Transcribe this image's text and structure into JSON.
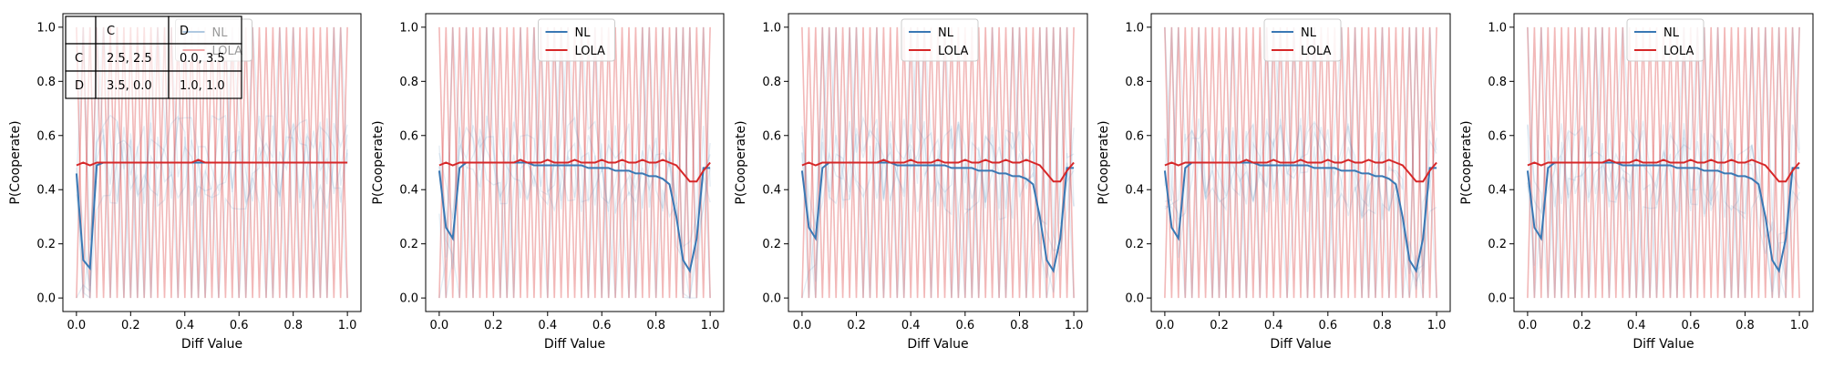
{
  "chart_data": [
    {
      "type": "line",
      "xlabel": "Diff Value",
      "ylabel": "P(Cooperate)",
      "xlim": [
        0.0,
        1.0
      ],
      "ylim": [
        0.0,
        1.0
      ],
      "xticks": [
        "0.0",
        "0.2",
        "0.4",
        "0.6",
        "0.8",
        "1.0"
      ],
      "yticks": [
        "0.0",
        "0.2",
        "0.4",
        "0.6",
        "0.8",
        "1.0"
      ],
      "legend": {
        "placement": "top-center",
        "entries": [
          "NL",
          "LOLA"
        ]
      },
      "colors": {
        "NL": "#3a78b4",
        "LOLA": "#d62728"
      },
      "x": [
        0.0,
        0.025,
        0.05,
        0.075,
        0.1,
        0.125,
        0.15,
        0.175,
        0.2,
        0.225,
        0.25,
        0.275,
        0.3,
        0.325,
        0.35,
        0.375,
        0.4,
        0.425,
        0.45,
        0.475,
        0.5,
        0.525,
        0.55,
        0.575,
        0.6,
        0.625,
        0.65,
        0.675,
        0.7,
        0.725,
        0.75,
        0.775,
        0.8,
        0.825,
        0.85,
        0.875,
        0.9,
        0.925,
        0.95,
        0.975,
        1.0
      ],
      "series": [
        {
          "name": "NL",
          "values": [
            0.46,
            0.14,
            0.11,
            0.49,
            0.5,
            0.5,
            0.5,
            0.5,
            0.5,
            0.5,
            0.5,
            0.5,
            0.5,
            0.5,
            0.5,
            0.5,
            0.5,
            0.5,
            0.5,
            0.5,
            0.5,
            0.5,
            0.5,
            0.5,
            0.5,
            0.5,
            0.5,
            0.5,
            0.5,
            0.5,
            0.5,
            0.5,
            0.5,
            0.5,
            0.5,
            0.5,
            0.5,
            0.5,
            0.5,
            0.5,
            0.5
          ]
        },
        {
          "name": "LOLA",
          "values": [
            0.49,
            0.5,
            0.49,
            0.5,
            0.5,
            0.5,
            0.5,
            0.5,
            0.5,
            0.5,
            0.5,
            0.5,
            0.5,
            0.5,
            0.5,
            0.5,
            0.5,
            0.5,
            0.51,
            0.5,
            0.5,
            0.5,
            0.5,
            0.5,
            0.5,
            0.5,
            0.5,
            0.5,
            0.5,
            0.5,
            0.5,
            0.5,
            0.5,
            0.5,
            0.5,
            0.5,
            0.5,
            0.5,
            0.5,
            0.5,
            0.5
          ]
        }
      ],
      "payoff_table": {
        "header": [
          "",
          "C",
          "D"
        ],
        "rows": [
          [
            "C",
            "2.5, 2.5",
            "0.0, 3.5"
          ],
          [
            "D",
            "3.5, 0.0",
            "1.0, 1.0"
          ]
        ]
      }
    },
    {
      "type": "line",
      "xlabel": "Diff Value",
      "ylabel": "P(Cooperate)",
      "xlim": [
        0.0,
        1.0
      ],
      "ylim": [
        0.0,
        1.0
      ],
      "xticks": [
        "0.0",
        "0.2",
        "0.4",
        "0.6",
        "0.8",
        "1.0"
      ],
      "yticks": [
        "0.0",
        "0.2",
        "0.4",
        "0.6",
        "0.8",
        "1.0"
      ],
      "legend": {
        "placement": "top-center",
        "entries": [
          "NL",
          "LOLA"
        ]
      },
      "colors": {
        "NL": "#3a78b4",
        "LOLA": "#d62728"
      },
      "x": [
        0.0,
        0.025,
        0.05,
        0.075,
        0.1,
        0.125,
        0.15,
        0.175,
        0.2,
        0.225,
        0.25,
        0.275,
        0.3,
        0.325,
        0.35,
        0.375,
        0.4,
        0.425,
        0.45,
        0.475,
        0.5,
        0.525,
        0.55,
        0.575,
        0.6,
        0.625,
        0.65,
        0.675,
        0.7,
        0.725,
        0.75,
        0.775,
        0.8,
        0.825,
        0.85,
        0.875,
        0.9,
        0.925,
        0.95,
        0.975,
        1.0
      ],
      "series": [
        {
          "name": "NL",
          "values": [
            0.47,
            0.26,
            0.22,
            0.48,
            0.5,
            0.5,
            0.5,
            0.5,
            0.5,
            0.5,
            0.5,
            0.5,
            0.5,
            0.5,
            0.49,
            0.49,
            0.49,
            0.49,
            0.49,
            0.49,
            0.49,
            0.49,
            0.48,
            0.48,
            0.48,
            0.48,
            0.47,
            0.47,
            0.47,
            0.46,
            0.46,
            0.45,
            0.45,
            0.44,
            0.42,
            0.3,
            0.14,
            0.1,
            0.22,
            0.48,
            0.48
          ]
        },
        {
          "name": "LOLA",
          "values": [
            0.49,
            0.5,
            0.49,
            0.5,
            0.5,
            0.5,
            0.5,
            0.5,
            0.5,
            0.5,
            0.5,
            0.5,
            0.51,
            0.5,
            0.5,
            0.5,
            0.51,
            0.5,
            0.5,
            0.5,
            0.51,
            0.5,
            0.5,
            0.5,
            0.51,
            0.5,
            0.5,
            0.51,
            0.5,
            0.5,
            0.51,
            0.5,
            0.5,
            0.51,
            0.5,
            0.49,
            0.46,
            0.43,
            0.43,
            0.47,
            0.5
          ]
        }
      ]
    },
    {
      "type": "line",
      "xlabel": "Diff Value",
      "ylabel": "P(Cooperate)",
      "xlim": [
        0.0,
        1.0
      ],
      "ylim": [
        0.0,
        1.0
      ],
      "xticks": [
        "0.0",
        "0.2",
        "0.4",
        "0.6",
        "0.8",
        "1.0"
      ],
      "yticks": [
        "0.0",
        "0.2",
        "0.4",
        "0.6",
        "0.8",
        "1.0"
      ],
      "legend": {
        "placement": "top-center",
        "entries": [
          "NL",
          "LOLA"
        ]
      },
      "colors": {
        "NL": "#3a78b4",
        "LOLA": "#d62728"
      },
      "x": [
        0.0,
        0.025,
        0.05,
        0.075,
        0.1,
        0.125,
        0.15,
        0.175,
        0.2,
        0.225,
        0.25,
        0.275,
        0.3,
        0.325,
        0.35,
        0.375,
        0.4,
        0.425,
        0.45,
        0.475,
        0.5,
        0.525,
        0.55,
        0.575,
        0.6,
        0.625,
        0.65,
        0.675,
        0.7,
        0.725,
        0.75,
        0.775,
        0.8,
        0.825,
        0.85,
        0.875,
        0.9,
        0.925,
        0.95,
        0.975,
        1.0
      ],
      "series": [
        {
          "name": "NL",
          "values": [
            0.47,
            0.26,
            0.22,
            0.48,
            0.5,
            0.5,
            0.5,
            0.5,
            0.5,
            0.5,
            0.5,
            0.5,
            0.5,
            0.5,
            0.49,
            0.49,
            0.49,
            0.49,
            0.49,
            0.49,
            0.49,
            0.49,
            0.48,
            0.48,
            0.48,
            0.48,
            0.47,
            0.47,
            0.47,
            0.46,
            0.46,
            0.45,
            0.45,
            0.44,
            0.42,
            0.3,
            0.14,
            0.1,
            0.22,
            0.48,
            0.48
          ]
        },
        {
          "name": "LOLA",
          "values": [
            0.49,
            0.5,
            0.49,
            0.5,
            0.5,
            0.5,
            0.5,
            0.5,
            0.5,
            0.5,
            0.5,
            0.5,
            0.51,
            0.5,
            0.5,
            0.5,
            0.51,
            0.5,
            0.5,
            0.5,
            0.51,
            0.5,
            0.5,
            0.5,
            0.51,
            0.5,
            0.5,
            0.51,
            0.5,
            0.5,
            0.51,
            0.5,
            0.5,
            0.51,
            0.5,
            0.49,
            0.46,
            0.43,
            0.43,
            0.47,
            0.5
          ]
        }
      ]
    },
    {
      "type": "line",
      "xlabel": "Diff Value",
      "ylabel": "P(Cooperate)",
      "xlim": [
        0.0,
        1.0
      ],
      "ylim": [
        0.0,
        1.0
      ],
      "xticks": [
        "0.0",
        "0.2",
        "0.4",
        "0.6",
        "0.8",
        "1.0"
      ],
      "yticks": [
        "0.0",
        "0.2",
        "0.4",
        "0.6",
        "0.8",
        "1.0"
      ],
      "legend": {
        "placement": "top-center",
        "entries": [
          "NL",
          "LOLA"
        ]
      },
      "colors": {
        "NL": "#3a78b4",
        "LOLA": "#d62728"
      },
      "x": [
        0.0,
        0.025,
        0.05,
        0.075,
        0.1,
        0.125,
        0.15,
        0.175,
        0.2,
        0.225,
        0.25,
        0.275,
        0.3,
        0.325,
        0.35,
        0.375,
        0.4,
        0.425,
        0.45,
        0.475,
        0.5,
        0.525,
        0.55,
        0.575,
        0.6,
        0.625,
        0.65,
        0.675,
        0.7,
        0.725,
        0.75,
        0.775,
        0.8,
        0.825,
        0.85,
        0.875,
        0.9,
        0.925,
        0.95,
        0.975,
        1.0
      ],
      "series": [
        {
          "name": "NL",
          "values": [
            0.47,
            0.26,
            0.22,
            0.48,
            0.5,
            0.5,
            0.5,
            0.5,
            0.5,
            0.5,
            0.5,
            0.5,
            0.5,
            0.5,
            0.49,
            0.49,
            0.49,
            0.49,
            0.49,
            0.49,
            0.49,
            0.49,
            0.48,
            0.48,
            0.48,
            0.48,
            0.47,
            0.47,
            0.47,
            0.46,
            0.46,
            0.45,
            0.45,
            0.44,
            0.42,
            0.3,
            0.14,
            0.1,
            0.22,
            0.48,
            0.48
          ]
        },
        {
          "name": "LOLA",
          "values": [
            0.49,
            0.5,
            0.49,
            0.5,
            0.5,
            0.5,
            0.5,
            0.5,
            0.5,
            0.5,
            0.5,
            0.5,
            0.51,
            0.5,
            0.5,
            0.5,
            0.51,
            0.5,
            0.5,
            0.5,
            0.51,
            0.5,
            0.5,
            0.5,
            0.51,
            0.5,
            0.5,
            0.51,
            0.5,
            0.5,
            0.51,
            0.5,
            0.5,
            0.51,
            0.5,
            0.49,
            0.46,
            0.43,
            0.43,
            0.47,
            0.5
          ]
        }
      ]
    },
    {
      "type": "line",
      "xlabel": "Diff Value",
      "ylabel": "P(Cooperate)",
      "xlim": [
        0.0,
        1.0
      ],
      "ylim": [
        0.0,
        1.0
      ],
      "xticks": [
        "0.0",
        "0.2",
        "0.4",
        "0.6",
        "0.8",
        "1.0"
      ],
      "yticks": [
        "0.0",
        "0.2",
        "0.4",
        "0.6",
        "0.8",
        "1.0"
      ],
      "legend": {
        "placement": "top-center",
        "entries": [
          "NL",
          "LOLA"
        ]
      },
      "colors": {
        "NL": "#3a78b4",
        "LOLA": "#d62728"
      },
      "x": [
        0.0,
        0.025,
        0.05,
        0.075,
        0.1,
        0.125,
        0.15,
        0.175,
        0.2,
        0.225,
        0.25,
        0.275,
        0.3,
        0.325,
        0.35,
        0.375,
        0.4,
        0.425,
        0.45,
        0.475,
        0.5,
        0.525,
        0.55,
        0.575,
        0.6,
        0.625,
        0.65,
        0.675,
        0.7,
        0.725,
        0.75,
        0.775,
        0.8,
        0.825,
        0.85,
        0.875,
        0.9,
        0.925,
        0.95,
        0.975,
        1.0
      ],
      "series": [
        {
          "name": "NL",
          "values": [
            0.47,
            0.26,
            0.22,
            0.48,
            0.5,
            0.5,
            0.5,
            0.5,
            0.5,
            0.5,
            0.5,
            0.5,
            0.5,
            0.5,
            0.49,
            0.49,
            0.49,
            0.49,
            0.49,
            0.49,
            0.49,
            0.49,
            0.48,
            0.48,
            0.48,
            0.48,
            0.47,
            0.47,
            0.47,
            0.46,
            0.46,
            0.45,
            0.45,
            0.44,
            0.42,
            0.3,
            0.14,
            0.1,
            0.22,
            0.48,
            0.48
          ]
        },
        {
          "name": "LOLA",
          "values": [
            0.49,
            0.5,
            0.49,
            0.5,
            0.5,
            0.5,
            0.5,
            0.5,
            0.5,
            0.5,
            0.5,
            0.5,
            0.51,
            0.5,
            0.5,
            0.5,
            0.51,
            0.5,
            0.5,
            0.5,
            0.51,
            0.5,
            0.5,
            0.5,
            0.51,
            0.5,
            0.5,
            0.51,
            0.5,
            0.5,
            0.51,
            0.5,
            0.5,
            0.51,
            0.5,
            0.49,
            0.46,
            0.43,
            0.43,
            0.47,
            0.5
          ]
        }
      ]
    }
  ]
}
